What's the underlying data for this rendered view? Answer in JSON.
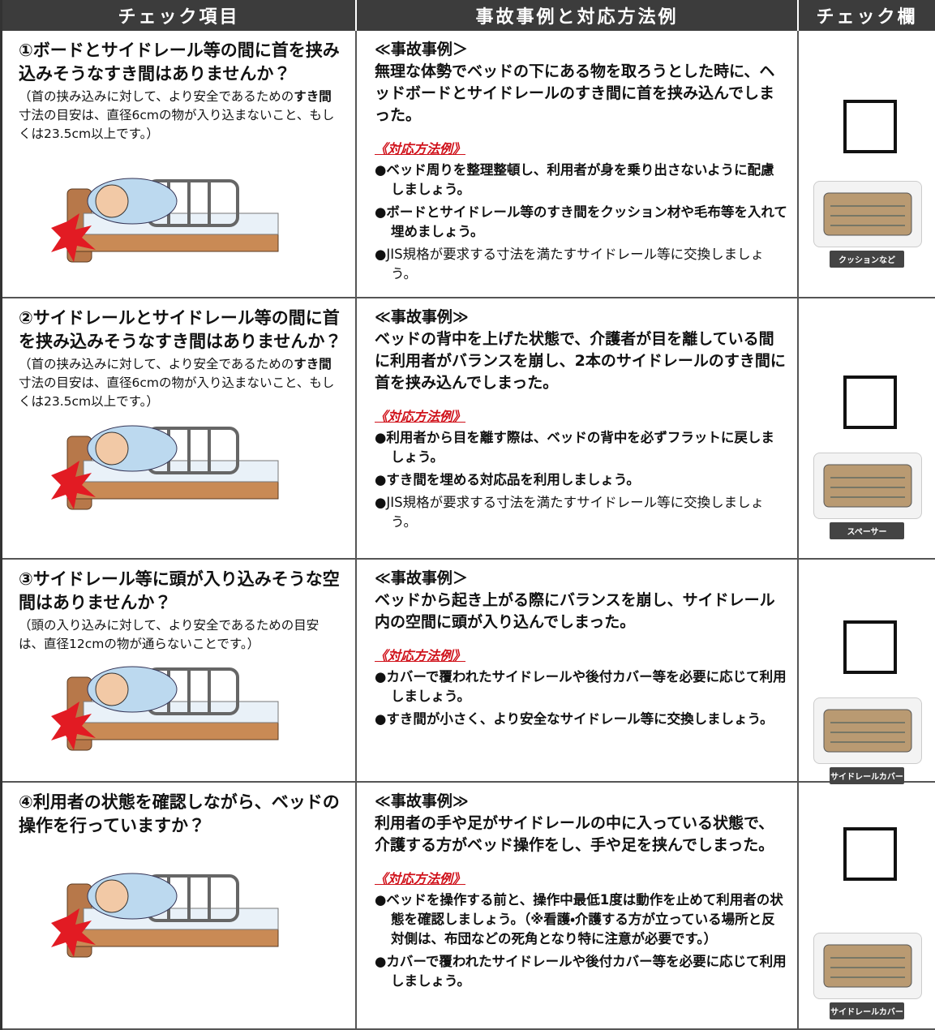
{
  "header": [
    "チェック項目",
    "事故事例と対応方法例",
    "チェック欄"
  ],
  "rows": [
    {
      "question": "①ボードとサイドレール等の間に首を挟み込みそうなすき間はありませんか？",
      "note": [
        {
          "text": "（首の挟み込みに対して、より安全であるための",
          "bold": false
        },
        {
          "text": "すき間",
          "bold": true
        },
        {
          "text": "寸法の目安は、直径6cmの物が入り込まないこと、もしくは23.5cm以上です。）",
          "bold": false
        }
      ],
      "case_label": "≪事故事例＞",
      "case_text": "無理な体勢でベッドの下にある物を取ろうとした時に、ヘッドボードとサイドレールのすき間に首を挟み込んでしまった。",
      "measures_label": "《対応方法例》",
      "measures": [
        {
          "text": "●ベッド周りを整理整頓し、利用者が身を乗り出さないように配慮しましょう。",
          "bold": true
        },
        {
          "text": "●ボードとサイドレール等のすき間をクッション材や毛布等を入れて埋めましょう。",
          "bold": true
        },
        {
          "text": "●JIS規格が要求する寸法を満たすサイドレール等に交換しましょう。",
          "bold": false
        }
      ],
      "product_label": "クッションなど"
    },
    {
      "question": "②サイドレールとサイドレール等の間に首を挟み込みそうなすき間はありませんか？",
      "note": [
        {
          "text": "（首の挟み込みに対して、より安全であるための",
          "bold": false
        },
        {
          "text": "すき間",
          "bold": true
        },
        {
          "text": "寸法の目安は、直径6cmの物が入り込まないこと、もしくは23.5cm以上です。）",
          "bold": false
        }
      ],
      "case_label": "≪事故事例≫",
      "case_text": "ベッドの背中を上げた状態で、介護者が目を離している間に利用者がバランスを崩し、2本のサイドレールのすき間に首を挟み込んでしまった。",
      "measures_label": "《対応方法例》",
      "measures": [
        {
          "text": "●利用者から目を離す際は、ベッドの背中を必ずフラットに戻しましょう。",
          "bold": true
        },
        {
          "text": "●すき間を埋める対応品を利用しましょう。",
          "bold": true
        },
        {
          "text": "●JIS規格が要求する寸法を満たすサイドレール等に交換しましょう。",
          "bold": false
        }
      ],
      "product_label": "スペーサー"
    },
    {
      "question": "③サイドレール等に頭が入り込みそうな空間はありませんか？",
      "note": [
        {
          "text": "（頭の入り込みに対して、より安全であるための目安は、直径12cmの物が通らないことです。）",
          "bold": false
        }
      ],
      "case_label": "≪事故事例＞",
      "case_text": "ベッドから起き上がる際にバランスを崩し、サイドレール内の空間に頭が入り込んでしまった。",
      "measures_label": "《対応方法例》",
      "measures": [
        {
          "text": "●カバーで覆われたサイドレールや後付カバー等を必要に応じて利用しましょう。",
          "bold": true
        },
        {
          "text": "●すき間が小さく、より安全なサイドレール等に交換しましょう。",
          "bold": true
        }
      ],
      "product_label": "サイドレールカバー"
    },
    {
      "question": "④利用者の状態を確認しながら、ベッドの操作を行っていますか？",
      "note": [],
      "case_label": "≪事故事例≫",
      "case_text": "利用者の手や足がサイドレールの中に入っている状態で、介護する方がベッド操作をし、手や足を挟んでしまった。",
      "measures_label": "《対応方法例》",
      "measures": [
        {
          "text": "●ベッドを操作する前と、操作中最低1度は動作を止めて利用者の状態を確認しましょう。（※看護・介護する方が立っている場所と反対側は、布団などの死角となり特に注意が必要です。）",
          "bold": true
        },
        {
          "text": "●カバーで覆われたサイドレールや後付カバー等を必要に応じて利用しましょう。",
          "bold": true
        }
      ],
      "product_label": "サイドレールカバー"
    }
  ]
}
